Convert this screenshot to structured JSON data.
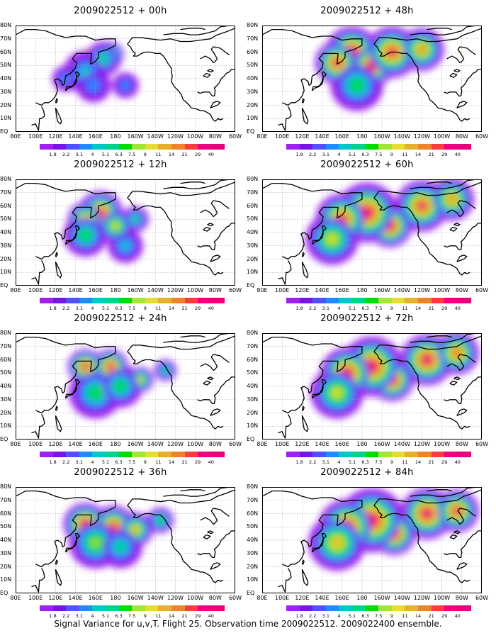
{
  "footer": "Signal Variance for u,v,T. Flight 25. Observation time 2009022512. 2009022400 ensemble.",
  "colorbar": {
    "labels": [
      "1.8",
      "2.2",
      "3.1",
      "4",
      "5.1",
      "6.3",
      "7.5",
      "9",
      "11",
      "14",
      "21",
      "29",
      "40"
    ],
    "colors": [
      "#a020f0",
      "#7814e6",
      "#5050ff",
      "#1e8cff",
      "#00c8c8",
      "#00d28c",
      "#00dc00",
      "#a0e632",
      "#e6dc32",
      "#e6af2d",
      "#f08228",
      "#fa3c3c",
      "#f00082",
      "#e6007a"
    ]
  },
  "axes": {
    "y_labels": [
      "80N",
      "70N",
      "60N",
      "50N",
      "40N",
      "30N",
      "20N",
      "10N",
      "EQ"
    ],
    "x_labels": [
      "80E",
      "100E",
      "120E",
      "140E",
      "160E",
      "180",
      "160W",
      "140W",
      "120W",
      "100W",
      "80W",
      "60W"
    ]
  },
  "chart_data": [
    {
      "type": "heatmap",
      "title": "2009022512 + 00h",
      "blobs": [
        [
          175,
          58,
          6,
          9
        ],
        [
          168,
          55,
          8,
          5
        ],
        [
          150,
          45,
          10,
          4
        ],
        [
          158,
          35,
          8,
          3
        ],
        [
          130,
          40,
          6,
          3
        ],
        [
          190,
          35,
          6,
          3
        ]
      ]
    },
    {
      "type": "heatmap",
      "title": "2009022512 + 12h",
      "blobs": [
        [
          165,
          55,
          10,
          12
        ],
        [
          150,
          50,
          8,
          10
        ],
        [
          180,
          45,
          8,
          8
        ],
        [
          150,
          38,
          10,
          6
        ],
        [
          200,
          50,
          6,
          5
        ],
        [
          190,
          30,
          8,
          4
        ]
      ]
    },
    {
      "type": "heatmap",
      "title": "2009022512 + 24h",
      "blobs": [
        [
          150,
          55,
          8,
          12
        ],
        [
          175,
          55,
          8,
          12
        ],
        [
          205,
          45,
          6,
          8
        ],
        [
          160,
          35,
          12,
          6
        ],
        [
          230,
          52,
          5,
          5
        ],
        [
          185,
          40,
          10,
          6
        ]
      ]
    },
    {
      "type": "heatmap",
      "title": "2009022512 + 36h",
      "blobs": [
        [
          150,
          52,
          10,
          14
        ],
        [
          178,
          50,
          10,
          12
        ],
        [
          200,
          48,
          8,
          9
        ],
        [
          160,
          38,
          12,
          7
        ],
        [
          225,
          55,
          6,
          6
        ],
        [
          185,
          35,
          10,
          5
        ]
      ]
    },
    {
      "type": "heatmap",
      "title": "2009022512 + 48h",
      "blobs": [
        [
          170,
          60,
          12,
          16
        ],
        [
          190,
          50,
          10,
          14
        ],
        [
          155,
          52,
          10,
          12
        ],
        [
          210,
          60,
          12,
          12
        ],
        [
          240,
          62,
          10,
          10
        ],
        [
          175,
          35,
          12,
          6
        ]
      ]
    },
    {
      "type": "heatmap",
      "title": "2009022512 + 60h",
      "blobs": [
        [
          208,
          45,
          10,
          19
        ],
        [
          185,
          55,
          14,
          14
        ],
        [
          160,
          50,
          12,
          12
        ],
        [
          240,
          60,
          12,
          12
        ],
        [
          270,
          65,
          10,
          10
        ],
        [
          150,
          35,
          12,
          8
        ]
      ]
    },
    {
      "type": "heatmap",
      "title": "2009022512 + 72h",
      "blobs": [
        [
          210,
          45,
          10,
          21
        ],
        [
          190,
          55,
          14,
          15
        ],
        [
          165,
          50,
          12,
          13
        ],
        [
          245,
          60,
          12,
          13
        ],
        [
          275,
          65,
          10,
          11
        ],
        [
          155,
          35,
          12,
          8
        ]
      ]
    },
    {
      "type": "heatmap",
      "title": "2009022512 + 84h",
      "blobs": [
        [
          212,
          45,
          10,
          22
        ],
        [
          190,
          55,
          15,
          16
        ],
        [
          165,
          50,
          13,
          14
        ],
        [
          245,
          60,
          12,
          14
        ],
        [
          275,
          62,
          10,
          12
        ],
        [
          155,
          38,
          13,
          9
        ]
      ]
    }
  ]
}
